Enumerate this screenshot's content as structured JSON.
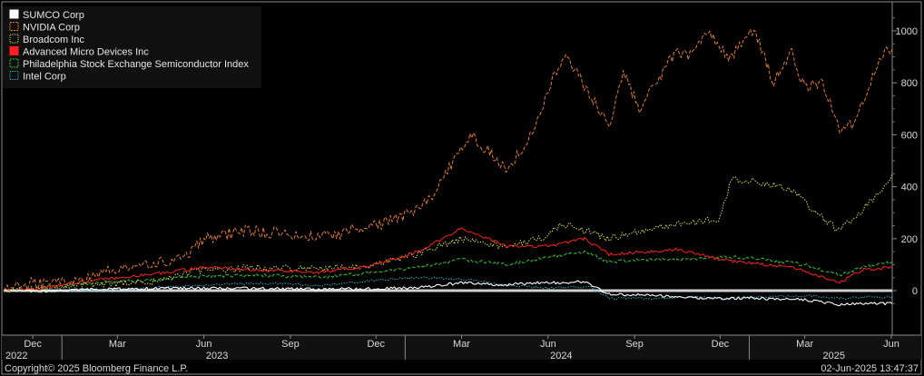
{
  "chart_data": {
    "type": "line",
    "title": "",
    "xlabel": "",
    "ylabel": "",
    "ylim": [
      -100,
      1100
    ],
    "y_ticks": [
      0,
      200,
      400,
      600,
      800,
      1000
    ],
    "grid": "off",
    "legend_placement": "top-left",
    "baseline": 0,
    "x_range": [
      "2022-10-31",
      "2025-06-02"
    ],
    "x_month_ticks": [
      {
        "label": "Dec",
        "date": "2022-12-01"
      },
      {
        "label": "Mar",
        "date": "2023-03-01"
      },
      {
        "label": "Jun",
        "date": "2023-06-01"
      },
      {
        "label": "Sep",
        "date": "2023-09-01"
      },
      {
        "label": "Dec",
        "date": "2023-12-01"
      },
      {
        "label": "Mar",
        "date": "2024-03-01"
      },
      {
        "label": "Jun",
        "date": "2024-06-01"
      },
      {
        "label": "Sep",
        "date": "2024-09-01"
      },
      {
        "label": "Dec",
        "date": "2024-12-01"
      },
      {
        "label": "Mar",
        "date": "2025-03-01"
      },
      {
        "label": "Jun",
        "date": "2025-06-01"
      }
    ],
    "x_year_labels": [
      {
        "label": "2022",
        "date": "2022-11-20"
      },
      {
        "label": "2023",
        "date": "2023-06-15"
      },
      {
        "label": "2024",
        "date": "2024-06-15"
      },
      {
        "label": "2025",
        "date": "2025-04-01"
      }
    ],
    "x_year_boundaries": [
      "2023-01-01",
      "2024-01-01",
      "2025-01-01"
    ],
    "series": [
      {
        "name": "SUMCO Corp",
        "color": "#ffffff",
        "dash": "solid",
        "points": [
          [
            "2022-10-31",
            0
          ],
          [
            "2022-12-15",
            -3
          ],
          [
            "2023-02-01",
            5
          ],
          [
            "2023-04-01",
            8
          ],
          [
            "2023-06-01",
            10
          ],
          [
            "2023-08-01",
            8
          ],
          [
            "2023-10-01",
            5
          ],
          [
            "2023-12-01",
            8
          ],
          [
            "2024-01-15",
            12
          ],
          [
            "2024-03-01",
            30
          ],
          [
            "2024-04-15",
            22
          ],
          [
            "2024-05-15",
            30
          ],
          [
            "2024-06-15",
            30
          ],
          [
            "2024-07-10",
            35
          ],
          [
            "2024-08-05",
            -15
          ],
          [
            "2024-09-01",
            -15
          ],
          [
            "2024-10-01",
            -20
          ],
          [
            "2024-11-01",
            -28
          ],
          [
            "2024-12-01",
            -30
          ],
          [
            "2025-01-01",
            -28
          ],
          [
            "2025-02-01",
            -32
          ],
          [
            "2025-03-01",
            -35
          ],
          [
            "2025-04-07",
            -55
          ],
          [
            "2025-05-01",
            -48
          ],
          [
            "2025-06-02",
            -50
          ]
        ]
      },
      {
        "name": "NVIDIA Corp",
        "color": "#e07a2e",
        "dash": "dash",
        "points": [
          [
            "2022-10-31",
            0
          ],
          [
            "2022-12-01",
            30
          ],
          [
            "2023-01-15",
            30
          ],
          [
            "2023-02-15",
            70
          ],
          [
            "2023-04-01",
            100
          ],
          [
            "2023-05-15",
            130
          ],
          [
            "2023-06-01",
            200
          ],
          [
            "2023-07-15",
            230
          ],
          [
            "2023-09-01",
            220
          ],
          [
            "2023-10-20",
            205
          ],
          [
            "2023-11-15",
            250
          ],
          [
            "2023-12-01",
            250
          ],
          [
            "2024-01-10",
            300
          ],
          [
            "2024-02-01",
            380
          ],
          [
            "2024-02-25",
            520
          ],
          [
            "2024-03-10",
            600
          ],
          [
            "2024-04-19",
            470
          ],
          [
            "2024-05-15",
            600
          ],
          [
            "2024-06-10",
            850
          ],
          [
            "2024-06-20",
            900
          ],
          [
            "2024-07-15",
            760
          ],
          [
            "2024-08-05",
            640
          ],
          [
            "2024-08-20",
            840
          ],
          [
            "2024-09-06",
            700
          ],
          [
            "2024-10-15",
            920
          ],
          [
            "2024-11-01",
            900
          ],
          [
            "2024-11-20",
            1000
          ],
          [
            "2024-12-10",
            890
          ],
          [
            "2025-01-06",
            1010
          ],
          [
            "2025-01-27",
            800
          ],
          [
            "2025-02-15",
            920
          ],
          [
            "2025-03-01",
            780
          ],
          [
            "2025-03-20",
            800
          ],
          [
            "2025-04-07",
            610
          ],
          [
            "2025-04-20",
            640
          ],
          [
            "2025-05-10",
            800
          ],
          [
            "2025-05-25",
            920
          ],
          [
            "2025-06-02",
            930
          ]
        ]
      },
      {
        "name": "Broadcom Inc",
        "color": "#d9d94a",
        "dash": "dot",
        "points": [
          [
            "2022-10-31",
            0
          ],
          [
            "2022-12-15",
            10
          ],
          [
            "2023-02-01",
            25
          ],
          [
            "2023-04-01",
            30
          ],
          [
            "2023-06-01",
            80
          ],
          [
            "2023-08-01",
            90
          ],
          [
            "2023-10-01",
            85
          ],
          [
            "2023-12-01",
            100
          ],
          [
            "2024-01-15",
            140
          ],
          [
            "2024-03-01",
            200
          ],
          [
            "2024-04-15",
            170
          ],
          [
            "2024-06-01",
            210
          ],
          [
            "2024-06-15",
            260
          ],
          [
            "2024-08-05",
            200
          ],
          [
            "2024-09-15",
            240
          ],
          [
            "2024-11-01",
            260
          ],
          [
            "2024-12-01",
            280
          ],
          [
            "2024-12-13",
            430
          ],
          [
            "2025-01-10",
            420
          ],
          [
            "2025-02-15",
            390
          ],
          [
            "2025-03-10",
            310
          ],
          [
            "2025-04-07",
            230
          ],
          [
            "2025-05-01",
            310
          ],
          [
            "2025-05-20",
            380
          ],
          [
            "2025-06-02",
            450
          ]
        ]
      },
      {
        "name": "Advanced Micro Devices Inc",
        "color": "#ff1e1e",
        "dash": "solid",
        "points": [
          [
            "2022-10-31",
            0
          ],
          [
            "2022-12-15",
            10
          ],
          [
            "2023-02-01",
            40
          ],
          [
            "2023-04-01",
            60
          ],
          [
            "2023-06-01",
            90
          ],
          [
            "2023-08-01",
            80
          ],
          [
            "2023-10-01",
            70
          ],
          [
            "2023-12-01",
            100
          ],
          [
            "2024-01-15",
            150
          ],
          [
            "2024-03-01",
            240
          ],
          [
            "2024-04-19",
            170
          ],
          [
            "2024-06-01",
            170
          ],
          [
            "2024-07-10",
            200
          ],
          [
            "2024-08-05",
            140
          ],
          [
            "2024-09-15",
            150
          ],
          [
            "2024-10-15",
            160
          ],
          [
            "2024-12-01",
            120
          ],
          [
            "2025-01-15",
            100
          ],
          [
            "2025-02-15",
            90
          ],
          [
            "2025-04-07",
            30
          ],
          [
            "2025-05-01",
            80
          ],
          [
            "2025-06-02",
            90
          ]
        ]
      },
      {
        "name": "Philadelphia Stock Exchange Semiconductor Index",
        "color": "#2ec42e",
        "dash": "dash",
        "points": [
          [
            "2022-10-31",
            0
          ],
          [
            "2022-12-15",
            10
          ],
          [
            "2023-02-01",
            30
          ],
          [
            "2023-04-01",
            40
          ],
          [
            "2023-06-01",
            55
          ],
          [
            "2023-08-01",
            60
          ],
          [
            "2023-10-01",
            50
          ],
          [
            "2023-12-01",
            70
          ],
          [
            "2024-01-15",
            90
          ],
          [
            "2024-03-01",
            120
          ],
          [
            "2024-04-19",
            100
          ],
          [
            "2024-06-01",
            130
          ],
          [
            "2024-07-10",
            150
          ],
          [
            "2024-08-05",
            110
          ],
          [
            "2024-09-15",
            120
          ],
          [
            "2024-11-01",
            120
          ],
          [
            "2024-12-15",
            130
          ],
          [
            "2025-01-15",
            120
          ],
          [
            "2025-03-01",
            100
          ],
          [
            "2025-04-07",
            60
          ],
          [
            "2025-05-01",
            90
          ],
          [
            "2025-06-02",
            110
          ]
        ]
      },
      {
        "name": "Intel Corp",
        "color": "#22b0c8",
        "dash": "dot",
        "points": [
          [
            "2022-10-31",
            0
          ],
          [
            "2022-12-15",
            -5
          ],
          [
            "2023-02-01",
            0
          ],
          [
            "2023-04-01",
            10
          ],
          [
            "2023-06-01",
            20
          ],
          [
            "2023-08-01",
            30
          ],
          [
            "2023-10-01",
            20
          ],
          [
            "2023-12-01",
            40
          ],
          [
            "2024-01-15",
            50
          ],
          [
            "2024-03-01",
            45
          ],
          [
            "2024-04-19",
            20
          ],
          [
            "2024-06-01",
            10
          ],
          [
            "2024-07-15",
            15
          ],
          [
            "2024-08-05",
            -30
          ],
          [
            "2024-09-15",
            -30
          ],
          [
            "2024-11-01",
            -25
          ],
          [
            "2024-12-15",
            -30
          ],
          [
            "2025-01-15",
            -25
          ],
          [
            "2025-03-01",
            -20
          ],
          [
            "2025-04-07",
            -30
          ],
          [
            "2025-05-01",
            -25
          ],
          [
            "2025-06-02",
            -25
          ]
        ]
      }
    ]
  },
  "footer": {
    "copyright": "Copyright© 2025 Bloomberg Finance L.P.",
    "timestamp": "02-Jun-2025 13:47:37"
  }
}
